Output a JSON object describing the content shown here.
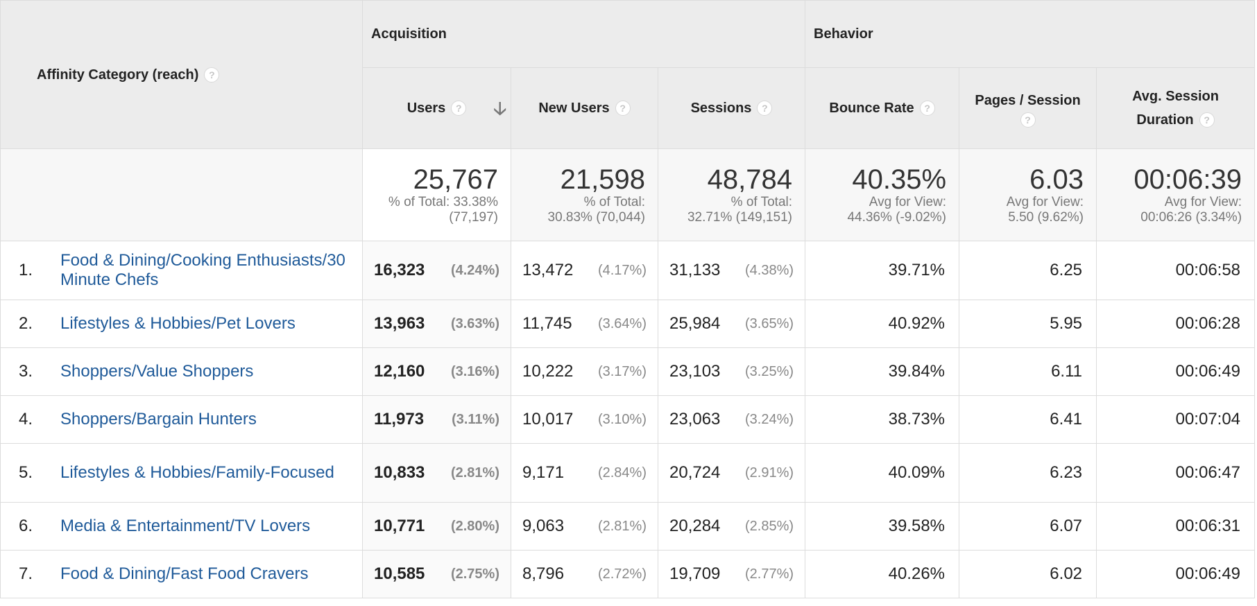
{
  "dimension_header": "Affinity Category (reach)",
  "groups": {
    "acquisition": "Acquisition",
    "behavior": "Behavior"
  },
  "metric_headers": {
    "users": "Users",
    "new_users": "New Users",
    "sessions": "Sessions",
    "bounce_rate": "Bounce Rate",
    "pages_session": "Pages / Session",
    "avg_duration_line1": "Avg. Session",
    "avg_duration_line2": "Duration"
  },
  "help_glyph": "?",
  "sort_glyph": "🡣",
  "totals": {
    "users": {
      "value": "25,767",
      "line1": "% of Total: 33.38%",
      "line2": "(77,197)"
    },
    "new_users": {
      "value": "21,598",
      "line1": "% of Total:",
      "line2": "30.83% (70,044)"
    },
    "sessions": {
      "value": "48,784",
      "line1": "% of Total:",
      "line2": "32.71% (149,151)"
    },
    "bounce_rate": {
      "value": "40.35%",
      "line1": "Avg for View:",
      "line2": "44.36% (-9.02%)"
    },
    "pages_session": {
      "value": "6.03",
      "line1": "Avg for View:",
      "line2": "5.50 (9.62%)"
    },
    "avg_duration": {
      "value": "00:06:39",
      "line1": "Avg for View:",
      "line2": "00:06:26 (3.34%)"
    }
  },
  "rows": [
    {
      "num": "1.",
      "category": "Food & Dining/Cooking Enthusiasts/30 Minute Chefs",
      "users": "16,323",
      "users_pct": "(4.24%)",
      "new_users": "13,472",
      "new_users_pct": "(4.17%)",
      "sessions": "31,133",
      "sessions_pct": "(4.38%)",
      "bounce_rate": "39.71%",
      "pages_session": "6.25",
      "avg_duration": "00:06:58"
    },
    {
      "num": "2.",
      "category": "Lifestyles & Hobbies/Pet Lovers",
      "users": "13,963",
      "users_pct": "(3.63%)",
      "new_users": "11,745",
      "new_users_pct": "(3.64%)",
      "sessions": "25,984",
      "sessions_pct": "(3.65%)",
      "bounce_rate": "40.92%",
      "pages_session": "5.95",
      "avg_duration": "00:06:28"
    },
    {
      "num": "3.",
      "category": "Shoppers/Value Shoppers",
      "users": "12,160",
      "users_pct": "(3.16%)",
      "new_users": "10,222",
      "new_users_pct": "(3.17%)",
      "sessions": "23,103",
      "sessions_pct": "(3.25%)",
      "bounce_rate": "39.84%",
      "pages_session": "6.11",
      "avg_duration": "00:06:49"
    },
    {
      "num": "4.",
      "category": "Shoppers/Bargain Hunters",
      "users": "11,973",
      "users_pct": "(3.11%)",
      "new_users": "10,017",
      "new_users_pct": "(3.10%)",
      "sessions": "23,063",
      "sessions_pct": "(3.24%)",
      "bounce_rate": "38.73%",
      "pages_session": "6.41",
      "avg_duration": "00:07:04"
    },
    {
      "num": "5.",
      "category": "Lifestyles & Hobbies/Family-Focused",
      "users": "10,833",
      "users_pct": "(2.81%)",
      "new_users": "9,171",
      "new_users_pct": "(2.84%)",
      "sessions": "20,724",
      "sessions_pct": "(2.91%)",
      "bounce_rate": "40.09%",
      "pages_session": "6.23",
      "avg_duration": "00:06:47"
    },
    {
      "num": "6.",
      "category": "Media & Entertainment/TV Lovers",
      "users": "10,771",
      "users_pct": "(2.80%)",
      "new_users": "9,063",
      "new_users_pct": "(2.81%)",
      "sessions": "20,284",
      "sessions_pct": "(2.85%)",
      "bounce_rate": "39.58%",
      "pages_session": "6.07",
      "avg_duration": "00:06:31"
    },
    {
      "num": "7.",
      "category": "Food & Dining/Fast Food Cravers",
      "users": "10,585",
      "users_pct": "(2.75%)",
      "new_users": "8,796",
      "new_users_pct": "(2.72%)",
      "sessions": "19,709",
      "sessions_pct": "(2.77%)",
      "bounce_rate": "40.26%",
      "pages_session": "6.02",
      "avg_duration": "00:06:49"
    }
  ]
}
